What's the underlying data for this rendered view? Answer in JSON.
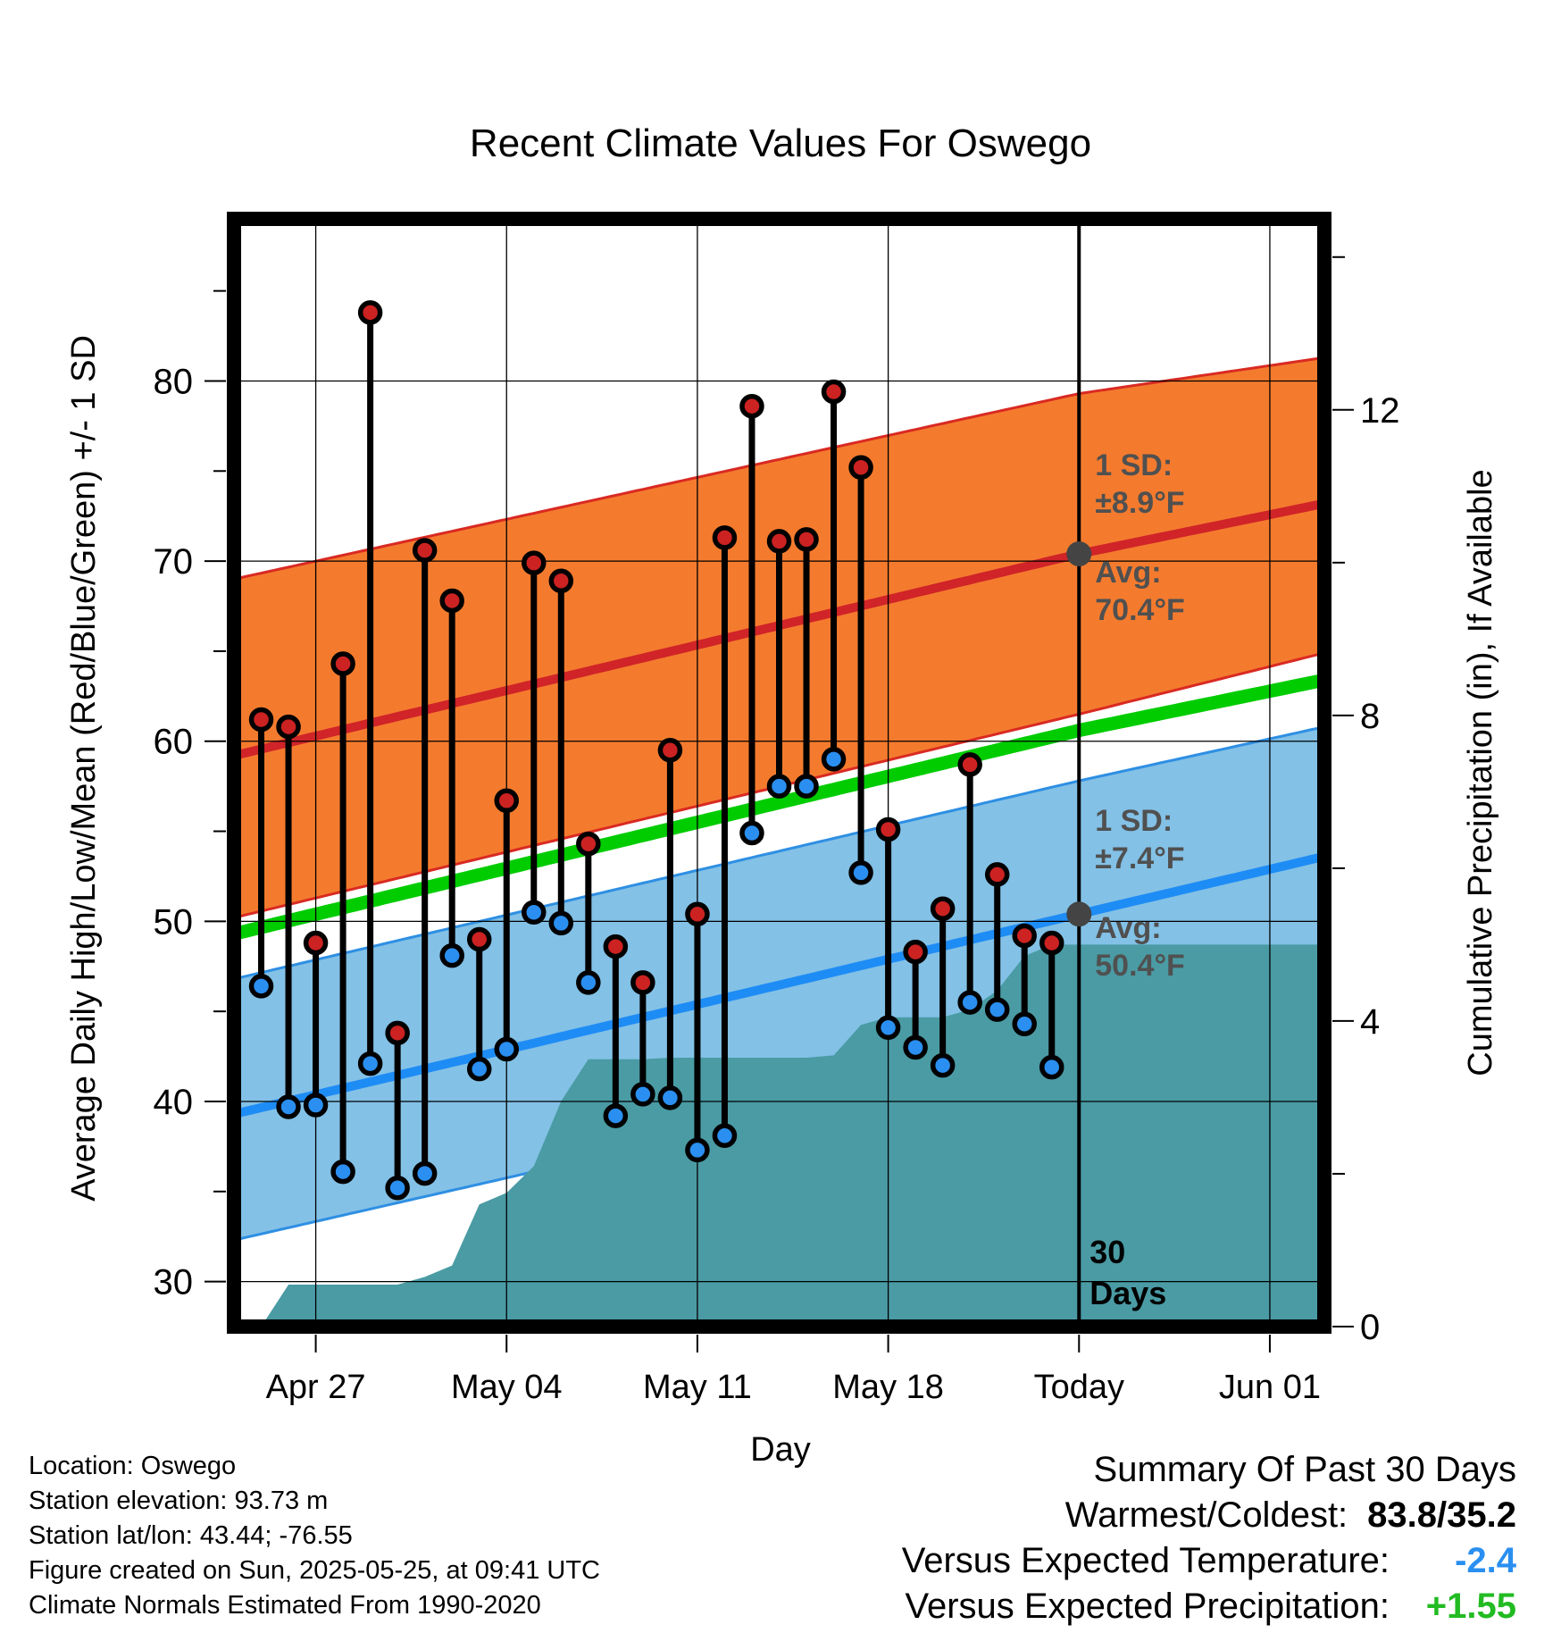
{
  "chart_data": {
    "type": "line",
    "title": "Recent Climate Values For Oswego",
    "xlabel": "Day",
    "ylabel": "Average Daily High/Low/Mean (Red/Blue/Green) +/- 1 SD",
    "y2label": "Cumulative Precipitation (in), If Available",
    "x_start": "2025-04-24",
    "x_end": "2025-06-03",
    "today": "2025-05-25",
    "x_ticks": [
      {
        "date": "2025-04-27",
        "label": "Apr 27"
      },
      {
        "date": "2025-05-04",
        "label": "May 04"
      },
      {
        "date": "2025-05-11",
        "label": "May 11"
      },
      {
        "date": "2025-05-18",
        "label": "May 18"
      },
      {
        "date": "2025-05-25",
        "label": "Today"
      },
      {
        "date": "2025-06-01",
        "label": "Jun 01"
      }
    ],
    "ylim": [
      27.5,
      89
    ],
    "y_ticks": [
      30,
      40,
      50,
      60,
      70,
      80
    ],
    "y2lim": [
      0,
      14.5
    ],
    "y2_ticks": [
      0,
      4,
      8,
      12
    ],
    "grid": true,
    "colors": {
      "high_band": "#f47b2e",
      "high_edge": "#d92a22",
      "high_avg": "#d02428",
      "low_band": "#83c1e6",
      "low_edge": "#2e8fe3",
      "low_avg": "#1e8cf5",
      "mean": "#00cc00",
      "precip": "#4a9ba4",
      "high_dot": "#cc2222",
      "low_dot": "#2a8ff0",
      "today_marker": "#444444",
      "annotation_text": "#505050",
      "summary_temp": "#2a8ff0",
      "summary_precip": "#22bb22"
    },
    "normals": {
      "dates": [
        "2025-04-24",
        "2025-05-25",
        "2025-06-03"
      ],
      "high_avg": [
        59.2,
        70.4,
        73.2
      ],
      "high_upper": [
        69.0,
        79.3,
        81.3
      ],
      "high_lower": [
        50.2,
        61.5,
        64.9
      ],
      "low_avg": [
        39.3,
        50.4,
        53.6
      ],
      "low_upper": [
        46.8,
        57.8,
        60.8
      ],
      "low_lower": [
        32.3,
        43.0,
        46.5
      ],
      "mean_avg": [
        49.3,
        60.6,
        63.4
      ]
    },
    "series": [
      {
        "name": "High",
        "x": [
          "2025-04-25",
          "2025-04-26",
          "2025-04-27",
          "2025-04-28",
          "2025-04-29",
          "2025-04-30",
          "2025-05-01",
          "2025-05-02",
          "2025-05-03",
          "2025-05-04",
          "2025-05-05",
          "2025-05-06",
          "2025-05-07",
          "2025-05-08",
          "2025-05-09",
          "2025-05-10",
          "2025-05-11",
          "2025-05-12",
          "2025-05-13",
          "2025-05-14",
          "2025-05-15",
          "2025-05-16",
          "2025-05-17",
          "2025-05-18",
          "2025-05-19",
          "2025-05-20",
          "2025-05-21",
          "2025-05-22",
          "2025-05-23",
          "2025-05-24"
        ],
        "values": [
          61.2,
          60.8,
          48.8,
          64.3,
          83.8,
          43.8,
          70.6,
          67.8,
          49.0,
          56.7,
          69.9,
          68.9,
          54.3,
          48.6,
          46.6,
          59.5,
          50.4,
          71.3,
          78.6,
          71.1,
          71.2,
          79.4,
          75.2,
          55.1,
          48.3,
          50.7,
          58.7,
          52.6,
          49.2,
          48.8
        ]
      },
      {
        "name": "Low",
        "x": [
          "2025-04-25",
          "2025-04-26",
          "2025-04-27",
          "2025-04-28",
          "2025-04-29",
          "2025-04-30",
          "2025-05-01",
          "2025-05-02",
          "2025-05-03",
          "2025-05-04",
          "2025-05-05",
          "2025-05-06",
          "2025-05-07",
          "2025-05-08",
          "2025-05-09",
          "2025-05-10",
          "2025-05-11",
          "2025-05-12",
          "2025-05-13",
          "2025-05-14",
          "2025-05-15",
          "2025-05-16",
          "2025-05-17",
          "2025-05-18",
          "2025-05-19",
          "2025-05-20",
          "2025-05-21",
          "2025-05-22",
          "2025-05-23",
          "2025-05-24"
        ],
        "values": [
          46.4,
          39.7,
          39.8,
          36.1,
          42.1,
          35.2,
          36.0,
          48.1,
          41.8,
          42.9,
          50.5,
          49.9,
          46.6,
          39.2,
          40.4,
          40.2,
          37.3,
          38.1,
          54.9,
          57.5,
          57.5,
          59.0,
          52.7,
          44.1,
          43.0,
          42.0,
          45.5,
          45.1,
          44.3,
          41.9
        ]
      },
      {
        "name": "Cumulative Precipitation",
        "type": "area",
        "x": [
          "2025-04-24",
          "2025-04-25",
          "2025-04-26",
          "2025-04-27",
          "2025-04-28",
          "2025-04-29",
          "2025-04-30",
          "2025-05-01",
          "2025-05-02",
          "2025-05-03",
          "2025-05-04",
          "2025-05-05",
          "2025-05-06",
          "2025-05-07",
          "2025-05-08",
          "2025-05-09",
          "2025-05-10",
          "2025-05-11",
          "2025-05-12",
          "2025-05-13",
          "2025-05-14",
          "2025-05-15",
          "2025-05-16",
          "2025-05-17",
          "2025-05-18",
          "2025-05-19",
          "2025-05-20",
          "2025-05-21",
          "2025-05-22",
          "2025-05-23",
          "2025-05-24",
          "2025-05-25",
          "2025-06-03"
        ],
        "values": [
          0.0,
          0.0,
          0.55,
          0.55,
          0.55,
          0.55,
          0.55,
          0.65,
          0.8,
          1.6,
          1.75,
          2.1,
          2.95,
          3.5,
          3.5,
          3.5,
          3.52,
          3.52,
          3.52,
          3.52,
          3.52,
          3.52,
          3.55,
          3.95,
          4.05,
          4.05,
          4.05,
          4.15,
          4.4,
          4.85,
          5.0,
          5.0,
          5.0
        ]
      }
    ],
    "annotations": {
      "high_sd_label": "1 SD:",
      "high_sd_value": "±8.9°F",
      "high_avg_label": "Avg:",
      "high_avg_value": "70.4°F",
      "low_sd_label": "1 SD:",
      "low_sd_value": "±7.4°F",
      "low_avg_label": "Avg:",
      "low_avg_value": "50.4°F",
      "days_line1": "30",
      "days_line2": "Days"
    }
  },
  "footer": {
    "location": "Location: Oswego",
    "elevation": "Station elevation: 93.73 m",
    "latlon": "Station lat/lon: 43.44; -76.55",
    "created": "Figure created on Sun, 2025-05-25, at 09:41 UTC",
    "normals": "Climate Normals Estimated From 1990-2020"
  },
  "summary": {
    "heading": "Summary Of Past 30 Days",
    "warm_cold_label": "Warmest/Coldest:",
    "warm_cold_value": "83.8/35.2",
    "temp_label": "Versus Expected Temperature:",
    "temp_value": "-2.4",
    "precip_label": "Versus Expected Precipitation:",
    "precip_value": "+1.55"
  }
}
